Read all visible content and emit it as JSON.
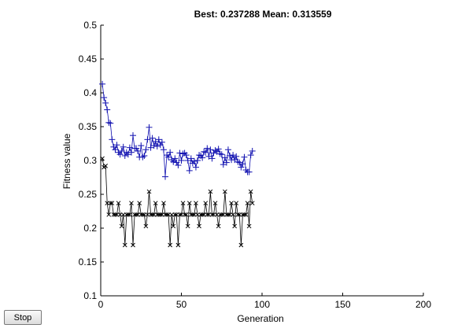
{
  "chart_data": {
    "type": "scatter",
    "title": "Best: 0.237288 Mean: 0.313559",
    "xlabel": "Generation",
    "ylabel": "Fitness value",
    "xlim": [
      0,
      200
    ],
    "ylim": [
      0.1,
      0.5
    ],
    "xticks": [
      "0",
      "50",
      "100",
      "150",
      "200"
    ],
    "yticks": [
      "0.1",
      "0.15",
      "0.2",
      "0.25",
      "0.3",
      "0.35",
      "0.4",
      "0.45",
      "0.5"
    ],
    "grid": false,
    "legend": "none",
    "series": [
      {
        "marker": "x",
        "color": "#000000",
        "x": [
          1,
          2,
          3,
          4,
          5,
          6,
          7,
          8,
          9,
          10,
          11,
          12,
          13,
          14,
          15,
          16,
          17,
          18,
          19,
          20,
          21,
          22,
          23,
          24,
          25,
          26,
          27,
          28,
          29,
          30,
          31,
          32,
          33,
          34,
          35,
          36,
          37,
          38,
          39,
          40,
          41,
          42,
          43,
          44,
          45,
          46,
          47,
          48,
          49,
          50,
          51,
          52,
          53,
          54,
          55,
          56,
          57,
          58,
          59,
          60,
          61,
          62,
          63,
          64,
          65,
          66,
          67,
          68,
          69,
          70,
          71,
          72,
          73,
          74,
          75,
          76,
          77,
          78,
          79,
          80,
          81,
          82,
          83,
          84,
          85,
          86,
          87,
          88,
          89,
          90,
          91,
          92,
          93,
          94
        ],
        "y": [
          0.303,
          0.29,
          0.292,
          0.237,
          0.22,
          0.237,
          0.237,
          0.22,
          0.22,
          0.22,
          0.237,
          0.22,
          0.203,
          0.22,
          0.175,
          0.22,
          0.22,
          0.22,
          0.237,
          0.175,
          0.22,
          0.22,
          0.22,
          0.237,
          0.22,
          0.22,
          0.22,
          0.203,
          0.22,
          0.254,
          0.22,
          0.22,
          0.22,
          0.237,
          0.22,
          0.22,
          0.22,
          0.22,
          0.237,
          0.22,
          0.22,
          0.22,
          0.175,
          0.22,
          0.203,
          0.22,
          0.22,
          0.175,
          0.22,
          0.22,
          0.237,
          0.22,
          0.22,
          0.203,
          0.237,
          0.22,
          0.22,
          0.22,
          0.237,
          0.22,
          0.203,
          0.22,
          0.22,
          0.22,
          0.237,
          0.22,
          0.22,
          0.254,
          0.22,
          0.22,
          0.237,
          0.22,
          0.203,
          0.22,
          0.22,
          0.22,
          0.254,
          0.22,
          0.22,
          0.22,
          0.237,
          0.22,
          0.203,
          0.237,
          0.22,
          0.22,
          0.175,
          0.22,
          0.22,
          0.22,
          0.237,
          0.203,
          0.254,
          0.237
        ]
      },
      {
        "marker": "+",
        "color": "#1010b0",
        "x": [
          1,
          2,
          3,
          4,
          5,
          6,
          7,
          8,
          9,
          10,
          11,
          12,
          13,
          14,
          15,
          16,
          17,
          18,
          19,
          20,
          21,
          22,
          23,
          24,
          25,
          26,
          27,
          28,
          29,
          30,
          31,
          32,
          33,
          34,
          35,
          36,
          37,
          38,
          39,
          40,
          41,
          42,
          43,
          44,
          45,
          46,
          47,
          48,
          49,
          50,
          51,
          52,
          53,
          54,
          55,
          56,
          57,
          58,
          59,
          60,
          61,
          62,
          63,
          64,
          65,
          66,
          67,
          68,
          69,
          70,
          71,
          72,
          73,
          74,
          75,
          76,
          77,
          78,
          79,
          80,
          81,
          82,
          83,
          84,
          85,
          86,
          87,
          88,
          89,
          90,
          91,
          92,
          93,
          94
        ],
        "y": [
          0.413,
          0.393,
          0.385,
          0.375,
          0.356,
          0.355,
          0.331,
          0.32,
          0.316,
          0.323,
          0.312,
          0.309,
          0.314,
          0.32,
          0.307,
          0.312,
          0.309,
          0.319,
          0.312,
          0.337,
          0.318,
          0.318,
          0.314,
          0.305,
          0.322,
          0.305,
          0.307,
          0.316,
          0.331,
          0.349,
          0.319,
          0.333,
          0.322,
          0.328,
          0.321,
          0.331,
          0.323,
          0.327,
          0.316,
          0.276,
          0.308,
          0.305,
          0.312,
          0.301,
          0.298,
          0.303,
          0.297,
          0.293,
          0.311,
          0.3,
          0.31,
          0.311,
          0.308,
          0.3,
          0.285,
          0.303,
          0.296,
          0.299,
          0.29,
          0.3,
          0.308,
          0.307,
          0.304,
          0.313,
          0.312,
          0.318,
          0.306,
          0.316,
          0.303,
          0.311,
          0.315,
          0.313,
          0.317,
          0.31,
          0.309,
          0.294,
          0.304,
          0.297,
          0.316,
          0.307,
          0.301,
          0.308,
          0.301,
          0.306,
          0.298,
          0.297,
          0.29,
          0.295,
          0.305,
          0.286,
          0.283,
          0.283,
          0.308,
          0.314
        ]
      }
    ]
  },
  "controls": {
    "stop_label": "Stop"
  }
}
